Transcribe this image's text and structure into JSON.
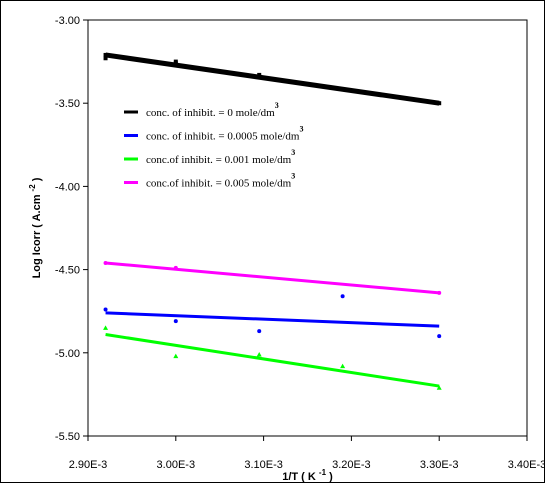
{
  "chart_data": {
    "type": "scatter",
    "xlabel": "1/T ( K",
    "xlabel_sup": "-1",
    "xlabel_tail": ")",
    "ylabel": "Log Icorr  ( A.cm",
    "ylabel_sup": "-2",
    "ylabel_tail": ")",
    "xlim": [
      0.0029,
      0.0034
    ],
    "ylim": [
      -5.5,
      -3.0
    ],
    "x_ticks": [
      0.0029,
      0.003,
      0.0031,
      0.0032,
      0.0033,
      0.0034
    ],
    "x_tick_labels": [
      "2.90E-3",
      "3.00E-3",
      "3.10E-3",
      "3.20E-3",
      "3.30E-3",
      "3.40E-3"
    ],
    "y_ticks": [
      -3.0,
      -3.5,
      -4.0,
      -4.5,
      -5.0,
      -5.5
    ],
    "y_tick_labels": [
      "-3.00",
      "-3.50",
      "-4.00",
      "-4.50",
      "-5.00",
      "-5.50"
    ],
    "grid": false,
    "legend_position": "upper-left",
    "series": [
      {
        "name": "conc. of inhibit. = 0 mole/dm",
        "name_sup": "3",
        "color": "#000000",
        "x": [
          0.00292,
          0.00292,
          0.003,
          0.003,
          0.003095,
          0.003095,
          0.0033
        ],
        "y": [
          -3.23,
          -3.21,
          -3.25,
          -3.26,
          -3.33,
          -3.34,
          -3.5
        ],
        "fit": [
          [
            0.00292,
            -3.21
          ],
          [
            0.0033,
            -3.5
          ]
        ]
      },
      {
        "name": "conc. of inhibit. = 0.0005 mole/dm",
        "name_sup": "3",
        "color": "#0000ff",
        "x": [
          0.00292,
          0.003,
          0.003095,
          0.00319,
          0.0033
        ],
        "y": [
          -4.74,
          -4.81,
          -4.87,
          -4.66,
          -4.9
        ],
        "fit": [
          [
            0.00292,
            -4.76
          ],
          [
            0.0033,
            -4.84
          ]
        ]
      },
      {
        "name": "conc.of inhibit. = 0.001 mole/dm",
        "name_sup": "3",
        "color": "#00ff00",
        "x": [
          0.00292,
          0.003,
          0.003095,
          0.00319,
          0.0033
        ],
        "y": [
          -4.85,
          -5.02,
          -5.01,
          -5.08,
          -5.21
        ],
        "fit": [
          [
            0.00292,
            -4.89
          ],
          [
            0.0033,
            -5.2
          ]
        ]
      },
      {
        "name": "conc.of inhibit. = 0.005 mole/dm",
        "name_sup": "3",
        "color": "#ff00ff",
        "x": [
          0.00292,
          0.003,
          0.0033
        ],
        "y": [
          -4.46,
          -4.49,
          -4.64
        ],
        "fit": [
          [
            0.00292,
            -4.46
          ],
          [
            0.0033,
            -4.64
          ]
        ]
      }
    ]
  }
}
